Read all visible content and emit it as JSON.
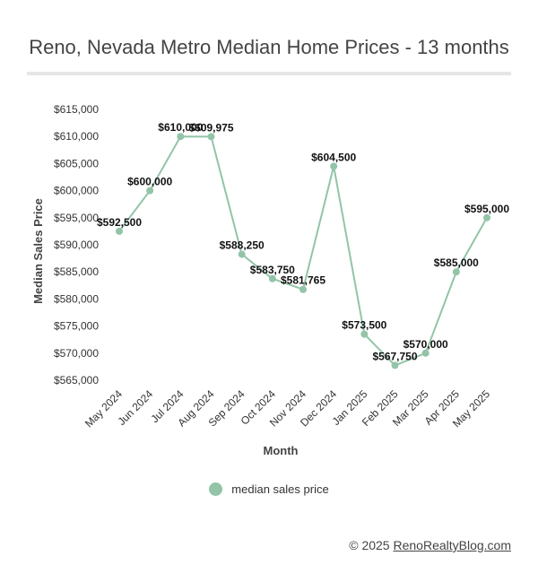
{
  "chart_data": {
    "type": "line",
    "title": "Reno, Nevada Metro Median Home Prices - 13 months",
    "xlabel": "Month",
    "ylabel": "Median Sales Price",
    "categories": [
      "May 2024",
      "Jun 2024",
      "Jul 2024",
      "Aug 2024",
      "Sep 2024",
      "Oct 2024",
      "Nov 2024",
      "Dec 2024",
      "Jan 2025",
      "Feb 2025",
      "Mar 2025",
      "Apr 2025",
      "May 2025"
    ],
    "series": [
      {
        "name": "median sales price",
        "values": [
          592500,
          600000,
          610000,
          609975,
          588250,
          583750,
          581765,
          604500,
          573500,
          567750,
          570000,
          585000,
          595000
        ],
        "labels": [
          "$592,500",
          "$600,000",
          "$610,000",
          "$609,975",
          "$588,250",
          "$583,750",
          "$581,765",
          "$604,500",
          "$573,500",
          "$567,750",
          "$570,000",
          "$585,000",
          "$595,000"
        ]
      }
    ],
    "ylim": [
      565000,
      615000
    ],
    "yticks": [
      565000,
      570000,
      575000,
      580000,
      585000,
      590000,
      595000,
      600000,
      605000,
      610000,
      615000
    ],
    "ytick_labels": [
      "$565,000",
      "$570,000",
      "$575,000",
      "$580,000",
      "$585,000",
      "$590,000",
      "$595,000",
      "$600,000",
      "$605,000",
      "$610,000",
      "$615,000"
    ],
    "grid": false,
    "legend_position": "bottom",
    "color": "#93c4a8"
  },
  "footer": {
    "copyright": "© 2025",
    "link_text": "RenoRealtyBlog.com"
  }
}
